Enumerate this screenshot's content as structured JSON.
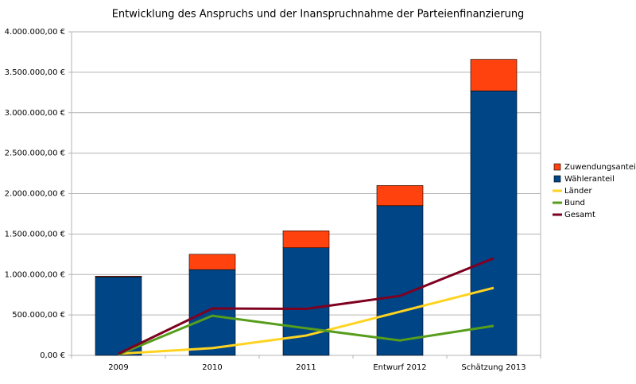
{
  "chart_data": {
    "type": "bar",
    "title": "Entwicklung des Anspruchs und der Inanspruchnahme der Parteienfinanzierung",
    "categories": [
      "2009",
      "2010",
      "2011",
      "Entwurf 2012",
      "Schätzung 2013"
    ],
    "series": [
      {
        "name": "Zuwendungsanteil",
        "type": "bar",
        "color": "#ff420e",
        "values": [
          10000,
          190000,
          210000,
          250000,
          390000
        ]
      },
      {
        "name": "Wähleranteil",
        "type": "bar",
        "color": "#004586",
        "values": [
          970000,
          1060000,
          1330000,
          1850000,
          3270000
        ]
      },
      {
        "name": "Länder",
        "type": "line",
        "color": "#ffd320",
        "values": [
          20000,
          90000,
          245000,
          540000,
          835000
        ]
      },
      {
        "name": "Bund",
        "type": "line",
        "color": "#579d1c",
        "values": [
          10000,
          490000,
          335000,
          185000,
          365000
        ]
      },
      {
        "name": "Gesamt",
        "type": "line",
        "color": "#7e0021",
        "values": [
          20000,
          580000,
          575000,
          735000,
          1200000
        ]
      }
    ],
    "ylim": [
      0,
      4000000
    ],
    "yticks": [
      {
        "value": 0,
        "label": "0,00 €"
      },
      {
        "value": 500000,
        "label": "500.000,00 €"
      },
      {
        "value": 1000000,
        "label": "1.000.000,00 €"
      },
      {
        "value": 1500000,
        "label": "1.500.000,00 €"
      },
      {
        "value": 2000000,
        "label": "2.000.000,00 €"
      },
      {
        "value": 2500000,
        "label": "2.500.000,00 €"
      },
      {
        "value": 3000000,
        "label": "3.000.000,00 €"
      },
      {
        "value": 3500000,
        "label": "3.500.000,00 €"
      },
      {
        "value": 4000000,
        "label": "4.000.000,00 €"
      }
    ],
    "grid": true,
    "legend": "right"
  }
}
